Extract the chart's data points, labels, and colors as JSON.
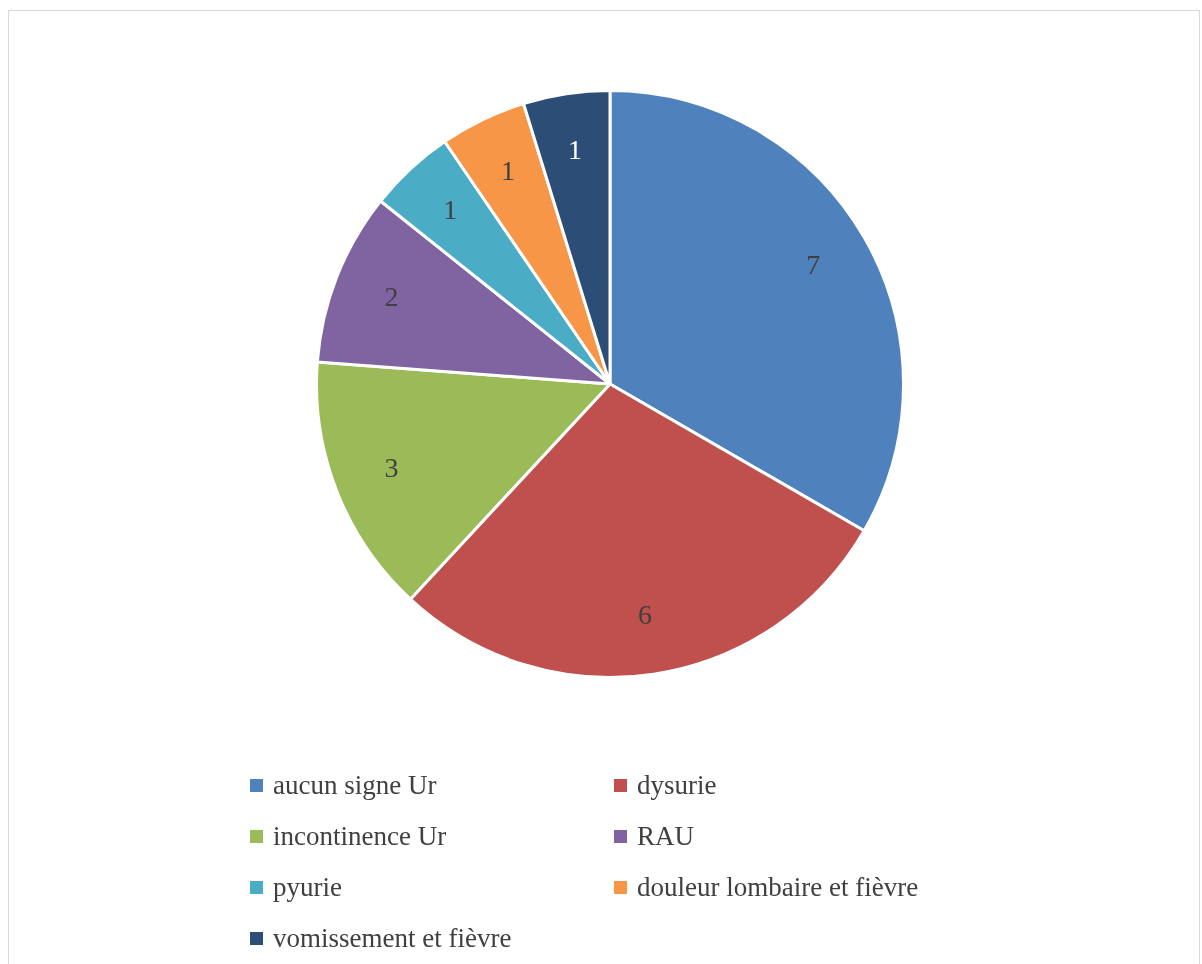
{
  "chart_data": {
    "type": "pie",
    "categories": [
      "aucun signe Ur",
      "dysurie",
      "incontinence Ur",
      "RAU",
      "pyurie",
      "douleur lombaire et fièvre",
      "vomissement et fièvre"
    ],
    "values": [
      7,
      6,
      3,
      2,
      1,
      1,
      1
    ],
    "colors": [
      "#4f81bd",
      "#c0504d",
      "#9bbb59",
      "#8064a2",
      "#4bacc6",
      "#f79646",
      "#2c4d75"
    ],
    "data_labels": true,
    "legend": "bottom"
  }
}
